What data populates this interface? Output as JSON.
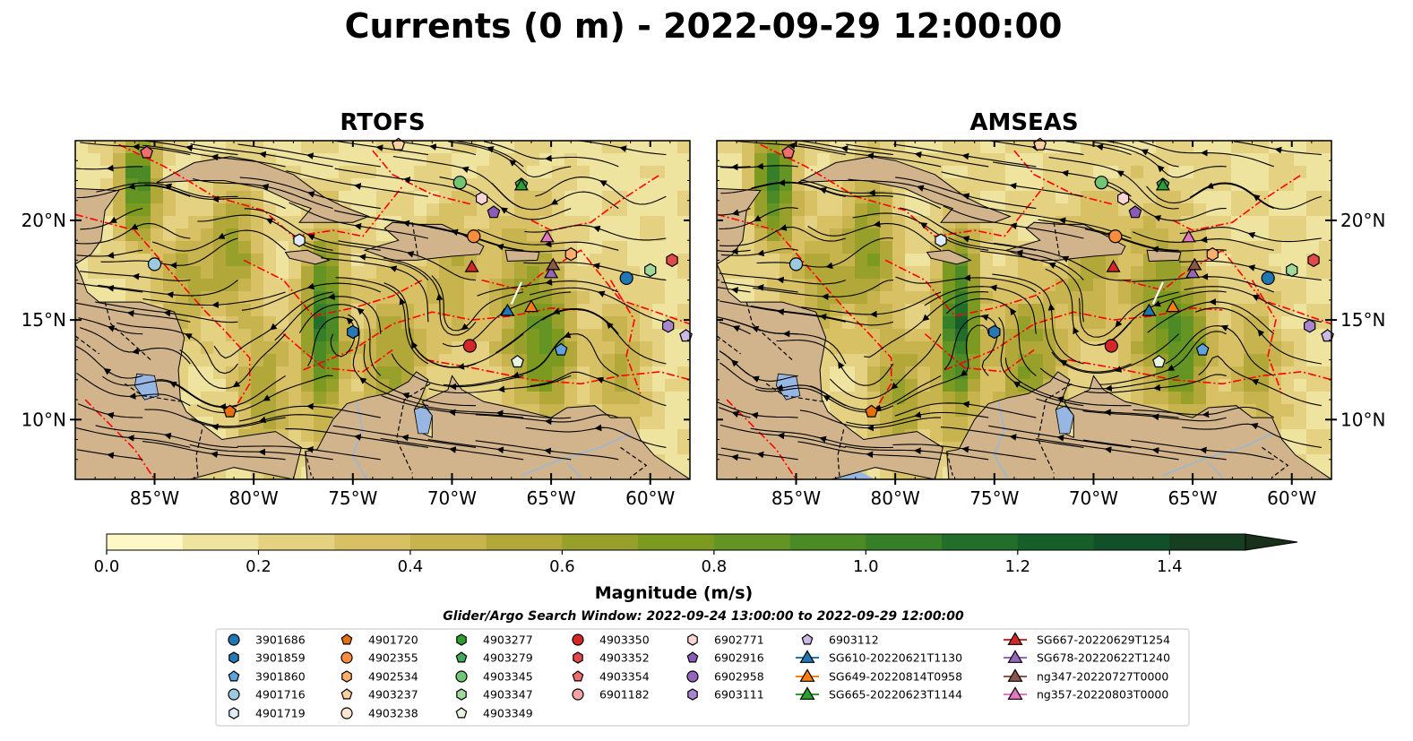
{
  "title": "Currents (0 m) - 2022-09-29 12:00:00",
  "panels": [
    {
      "id": "rtofs",
      "title": "RTOFS",
      "ylabel_side": "left"
    },
    {
      "id": "amseas",
      "title": "AMSEAS",
      "ylabel_side": "right"
    }
  ],
  "axes": {
    "lon_ticks": [
      "85°W",
      "80°W",
      "75°W",
      "70°W",
      "65°W",
      "60°W"
    ],
    "lon_values": [
      -85,
      -80,
      -75,
      -70,
      -65,
      -60
    ],
    "lat_ticks": [
      "20°N",
      "15°N",
      "10°N"
    ],
    "lat_values": [
      20,
      15,
      10
    ],
    "lon_range": [
      -89,
      -58
    ],
    "lat_range": [
      7,
      24
    ]
  },
  "colorbar": {
    "label": "Magnitude (m/s)",
    "ticks": [
      "0.0",
      "0.2",
      "0.4",
      "0.6",
      "0.8",
      "1.0",
      "1.2",
      "1.4"
    ],
    "tick_values": [
      0.0,
      0.2,
      0.4,
      0.6,
      0.8,
      1.0,
      1.2,
      1.4
    ],
    "range": [
      0,
      1.5
    ],
    "extend": "max",
    "colors": [
      "#fdf8c6",
      "#efe3a0",
      "#e4d181",
      "#d8c065",
      "#c8b44e",
      "#b2a83a",
      "#97a02a",
      "#7d9a20",
      "#639424",
      "#4c8a25",
      "#367e28",
      "#216f2a",
      "#165f2a",
      "#12502a",
      "#163f22",
      "#19301a"
    ]
  },
  "search_window": "Glider/Argo Search Window: 2022-09-24 13:00:00 to 2022-09-29 12:00:00",
  "legend": [
    {
      "label": "3901686",
      "marker": "circle",
      "color": "#1f77b4"
    },
    {
      "label": "3901859",
      "marker": "hexagon",
      "color": "#2878b5"
    },
    {
      "label": "3901860",
      "marker": "pentagon",
      "color": "#5fa2dd"
    },
    {
      "label": "4901716",
      "marker": "circle",
      "color": "#9ecae1"
    },
    {
      "label": "4901719",
      "marker": "hexagon",
      "color": "#deebf7"
    },
    {
      "label": "4901720",
      "marker": "pentagon",
      "color": "#e6700b"
    },
    {
      "label": "4902355",
      "marker": "circle",
      "color": "#fd8d3c"
    },
    {
      "label": "4902534",
      "marker": "hexagon",
      "color": "#fdae6b"
    },
    {
      "label": "4903237",
      "marker": "pentagon",
      "color": "#fdd0a2"
    },
    {
      "label": "4903238",
      "marker": "circle",
      "color": "#fee6ce"
    },
    {
      "label": "4903277",
      "marker": "hexagon",
      "color": "#2ca02c"
    },
    {
      "label": "4903279",
      "marker": "pentagon",
      "color": "#41ab5d"
    },
    {
      "label": "4903345",
      "marker": "circle",
      "color": "#74c476"
    },
    {
      "label": "4903347",
      "marker": "hexagon",
      "color": "#a1d99b"
    },
    {
      "label": "4903349",
      "marker": "pentagon",
      "color": "#e5f5e0"
    },
    {
      "label": "4903350",
      "marker": "circle",
      "color": "#d62728"
    },
    {
      "label": "4903352",
      "marker": "hexagon",
      "color": "#e04a4a"
    },
    {
      "label": "4903354",
      "marker": "pentagon",
      "color": "#ef6f6f"
    },
    {
      "label": "6901182",
      "marker": "circle",
      "color": "#f4a3a3"
    },
    {
      "label": "6902771",
      "marker": "hexagon",
      "color": "#fcd5d5"
    },
    {
      "label": "6902916",
      "marker": "pentagon",
      "color": "#8a5bb8"
    },
    {
      "label": "6902958",
      "marker": "circle",
      "color": "#9467bd"
    },
    {
      "label": "6903111",
      "marker": "hexagon",
      "color": "#a886cf"
    },
    {
      "label": "6903112",
      "marker": "pentagon",
      "color": "#cdb8e6"
    },
    {
      "label": "SG610-20220621T1130",
      "marker": "triangle",
      "color": "#1f77b4"
    },
    {
      "label": "SG649-20220814T0958",
      "marker": "triangle",
      "color": "#ff7f0e"
    },
    {
      "label": "SG665-20220623T1144",
      "marker": "triangle",
      "color": "#2ca02c"
    },
    {
      "label": "SG667-20220629T1254",
      "marker": "triangle",
      "color": "#d62728"
    },
    {
      "label": "SG678-20220622T1240",
      "marker": "triangle",
      "color": "#9467bd"
    },
    {
      "label": "ng347-20220727T0000",
      "marker": "triangle",
      "color": "#8c564b"
    },
    {
      "label": "ng357-20220803T0000",
      "marker": "triangle",
      "color": "#e377c2"
    }
  ],
  "map_markers": [
    {
      "legend": "3901686",
      "lon": -61.2,
      "lat": 17.1
    },
    {
      "legend": "3901859",
      "lon": -75.0,
      "lat": 14.4
    },
    {
      "legend": "3901860",
      "lon": -64.5,
      "lat": 13.5
    },
    {
      "legend": "4901716",
      "lon": -85.0,
      "lat": 17.8
    },
    {
      "legend": "4901719",
      "lon": -77.7,
      "lat": 19.0
    },
    {
      "legend": "4901720",
      "lon": -81.2,
      "lat": 10.4
    },
    {
      "legend": "4902355",
      "lon": -68.9,
      "lat": 19.2
    },
    {
      "legend": "4902534",
      "lon": -64.0,
      "lat": 18.3
    },
    {
      "legend": "4903237",
      "lon": -72.7,
      "lat": 23.8
    },
    {
      "legend": "4903279",
      "lon": -66.5,
      "lat": 21.8
    },
    {
      "legend": "4903345",
      "lon": -69.6,
      "lat": 21.9
    },
    {
      "legend": "4903347",
      "lon": -60.0,
      "lat": 17.5
    },
    {
      "legend": "4903349",
      "lon": -66.7,
      "lat": 12.9
    },
    {
      "legend": "4903350",
      "lon": -69.1,
      "lat": 13.7
    },
    {
      "legend": "4903352",
      "lon": -58.9,
      "lat": 18.0
    },
    {
      "legend": "4903354",
      "lon": -85.4,
      "lat": 23.4
    },
    {
      "legend": "6902771",
      "lon": -68.5,
      "lat": 21.1
    },
    {
      "legend": "6902916",
      "lon": -67.9,
      "lat": 20.4
    },
    {
      "legend": "6903111",
      "lon": -59.1,
      "lat": 14.7
    },
    {
      "legend": "6903112",
      "lon": -58.2,
      "lat": 14.2
    },
    {
      "legend": "SG610-20220621T1130",
      "lon": -67.2,
      "lat": 15.5
    },
    {
      "legend": "SG649-20220814T0958",
      "lon": -66.0,
      "lat": 15.7
    },
    {
      "legend": "SG665-20220623T1144",
      "lon": -66.5,
      "lat": 21.8
    },
    {
      "legend": "SG667-20220629T1254",
      "lon": -69.0,
      "lat": 17.7
    },
    {
      "legend": "SG678-20220622T1240",
      "lon": -65.0,
      "lat": 17.4
    },
    {
      "legend": "ng347-20220727T0000",
      "lon": -64.9,
      "lat": 17.8
    },
    {
      "legend": "ng357-20220803T0000",
      "lon": -65.2,
      "lat": 19.2
    }
  ],
  "map_colors": {
    "land": "#d2b48c",
    "lake": "#97b6e1",
    "pacific_amseas": "#97b6e1",
    "eez": "#ff0000",
    "streamline": "#000000"
  }
}
